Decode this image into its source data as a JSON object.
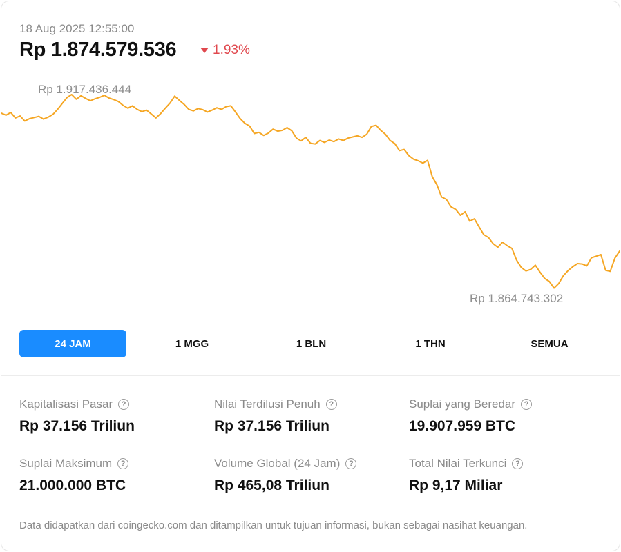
{
  "header": {
    "timestamp": "18 Aug 2025 12:55:00",
    "price": "Rp 1.874.579.536",
    "change": "1.93%",
    "change_direction": "down",
    "change_color": "#e0484e"
  },
  "chart_data": {
    "type": "line",
    "color": "#f5a623",
    "high_label": "Rp 1.917.436.444",
    "low_label": "Rp 1.864.743.302",
    "high_value": 1917436444,
    "low_value": 1864743302,
    "values": [
      1910000000,
      1909500000,
      1910200000,
      1908800000,
      1909300000,
      1908000000,
      1908600000,
      1908900000,
      1909200000,
      1908500000,
      1909000000,
      1909700000,
      1911000000,
      1912500000,
      1914000000,
      1914800000,
      1913600000,
      1914500000,
      1913800000,
      1913200000,
      1913700000,
      1914100000,
      1914600000,
      1913900000,
      1913500000,
      1913000000,
      1912000000,
      1911300000,
      1911900000,
      1911000000,
      1910400000,
      1910800000,
      1909800000,
      1908800000,
      1909900000,
      1911300000,
      1912600000,
      1914400000,
      1913300000,
      1912300000,
      1911000000,
      1910600000,
      1911200000,
      1910900000,
      1910300000,
      1910800000,
      1911400000,
      1911000000,
      1911700000,
      1911900000,
      1910300000,
      1908600000,
      1907400000,
      1906700000,
      1904800000,
      1905100000,
      1904300000,
      1904900000,
      1905900000,
      1905400000,
      1905600000,
      1906300000,
      1905500000,
      1903600000,
      1902900000,
      1903800000,
      1902300000,
      1902100000,
      1903000000,
      1902500000,
      1903100000,
      1902700000,
      1903400000,
      1903000000,
      1903600000,
      1903900000,
      1904200000,
      1903800000,
      1904600000,
      1906600000,
      1906900000,
      1905600000,
      1904600000,
      1903000000,
      1902200000,
      1900400000,
      1900700000,
      1899100000,
      1898200000,
      1897800000,
      1897200000,
      1897900000,
      1893700000,
      1891600000,
      1888500000,
      1887900000,
      1886000000,
      1885300000,
      1883800000,
      1884700000,
      1882300000,
      1882900000,
      1880800000,
      1878800000,
      1878100000,
      1876500000,
      1875600000,
      1876900000,
      1876000000,
      1875300000,
      1872300000,
      1870400000,
      1869500000,
      1869900000,
      1871000000,
      1869200000,
      1867600000,
      1866800000,
      1865100000,
      1866300000,
      1868300000,
      1869600000,
      1870600000,
      1871400000,
      1871300000,
      1870800000,
      1872900000,
      1873300000,
      1873700000,
      1869700000,
      1869400000,
      1872800000,
      1874600000
    ],
    "ylim": [
      1859000000,
      1921000000
    ]
  },
  "tabs": [
    {
      "label": "24 JAM",
      "active": true
    },
    {
      "label": "1 MGG",
      "active": false
    },
    {
      "label": "1 BLN",
      "active": false
    },
    {
      "label": "1 THN",
      "active": false
    },
    {
      "label": "SEMUA",
      "active": false
    }
  ],
  "stats": [
    {
      "label": "Kapitalisasi Pasar",
      "value": "Rp 37.156 Triliun"
    },
    {
      "label": "Nilai Terdilusi Penuh",
      "value": "Rp 37.156 Triliun"
    },
    {
      "label": "Suplai yang Beredar",
      "value": "19.907.959 BTC"
    },
    {
      "label": "Suplai Maksimum",
      "value": "21.000.000 BTC"
    },
    {
      "label": "Volume Global (24 Jam)",
      "value": "Rp 465,08 Triliun"
    },
    {
      "label": "Total Nilai Terkunci",
      "value": "Rp 9,17 Miliar"
    }
  ],
  "help_icon_glyph": "?",
  "footnote": "Data didapatkan dari coingecko.com dan ditampilkan untuk tujuan informasi, bukan sebagai nasihat keuangan."
}
